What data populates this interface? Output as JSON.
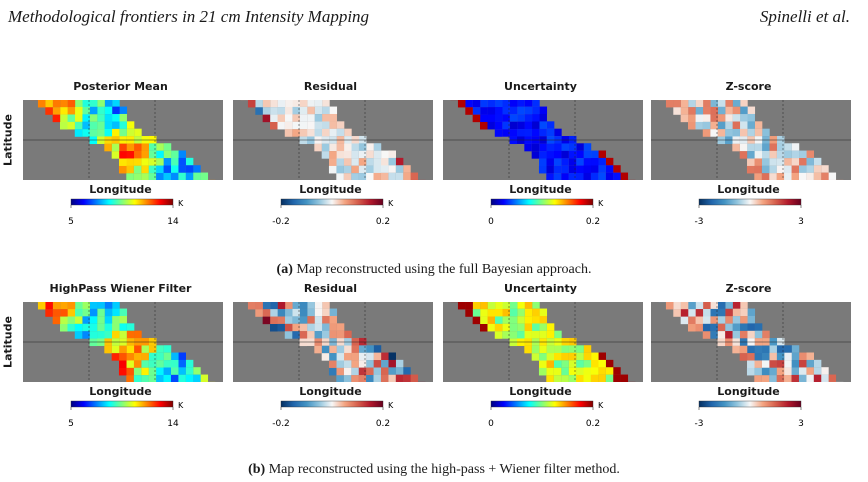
{
  "header": {
    "left": "Methodological frontiers in 21 cm Intensity Mapping",
    "right": "Spinelli et al."
  },
  "y_axis_label": "Latitude",
  "rows": [
    {
      "caption_tag": "(a)",
      "caption_text": " Map reconstructed using the full Bayesian approach.",
      "panels": [
        {
          "title": "Posterior Mean",
          "xlabel": "Longitude",
          "colormap": "jet",
          "pattern": "mean-smooth",
          "cbar": {
            "min": "5",
            "max": "14",
            "unit": "K"
          }
        },
        {
          "title": "Residual",
          "xlabel": "Longitude",
          "colormap": "rdbu",
          "pattern": "residual-edge",
          "cbar": {
            "min": "-0.2",
            "max": "0.2",
            "unit": "K"
          }
        },
        {
          "title": "Uncertainty",
          "xlabel": "Longitude",
          "colormap": "jet",
          "pattern": "uncert-low",
          "cbar": {
            "min": "0",
            "max": "0.2",
            "unit": "K"
          }
        },
        {
          "title": "Z-score",
          "xlabel": "Longitude",
          "colormap": "rdbu",
          "pattern": "zscore-mild",
          "cbar": {
            "min": "-3",
            "max": "3",
            "unit": ""
          }
        }
      ]
    },
    {
      "caption_tag": "(b)",
      "caption_text": " Map reconstructed using the high-pass + Wiener filter method.",
      "panels": [
        {
          "title": "HighPass Wiener Filter",
          "xlabel": "Longitude",
          "colormap": "jet",
          "pattern": "mean-smooth",
          "cbar": {
            "min": "5",
            "max": "14",
            "unit": "K"
          }
        },
        {
          "title": "Residual",
          "xlabel": "Longitude",
          "colormap": "rdbu",
          "pattern": "residual-strong",
          "cbar": {
            "min": "-0.2",
            "max": "0.2",
            "unit": "K"
          }
        },
        {
          "title": "Uncertainty",
          "xlabel": "Longitude",
          "colormap": "jet",
          "pattern": "uncert-high",
          "cbar": {
            "min": "0",
            "max": "0.2",
            "unit": "K"
          }
        },
        {
          "title": "Z-score",
          "xlabel": "Longitude",
          "colormap": "rdbu",
          "pattern": "zscore-strong",
          "cbar": {
            "min": "-3",
            "max": "3",
            "unit": ""
          }
        }
      ]
    }
  ]
}
